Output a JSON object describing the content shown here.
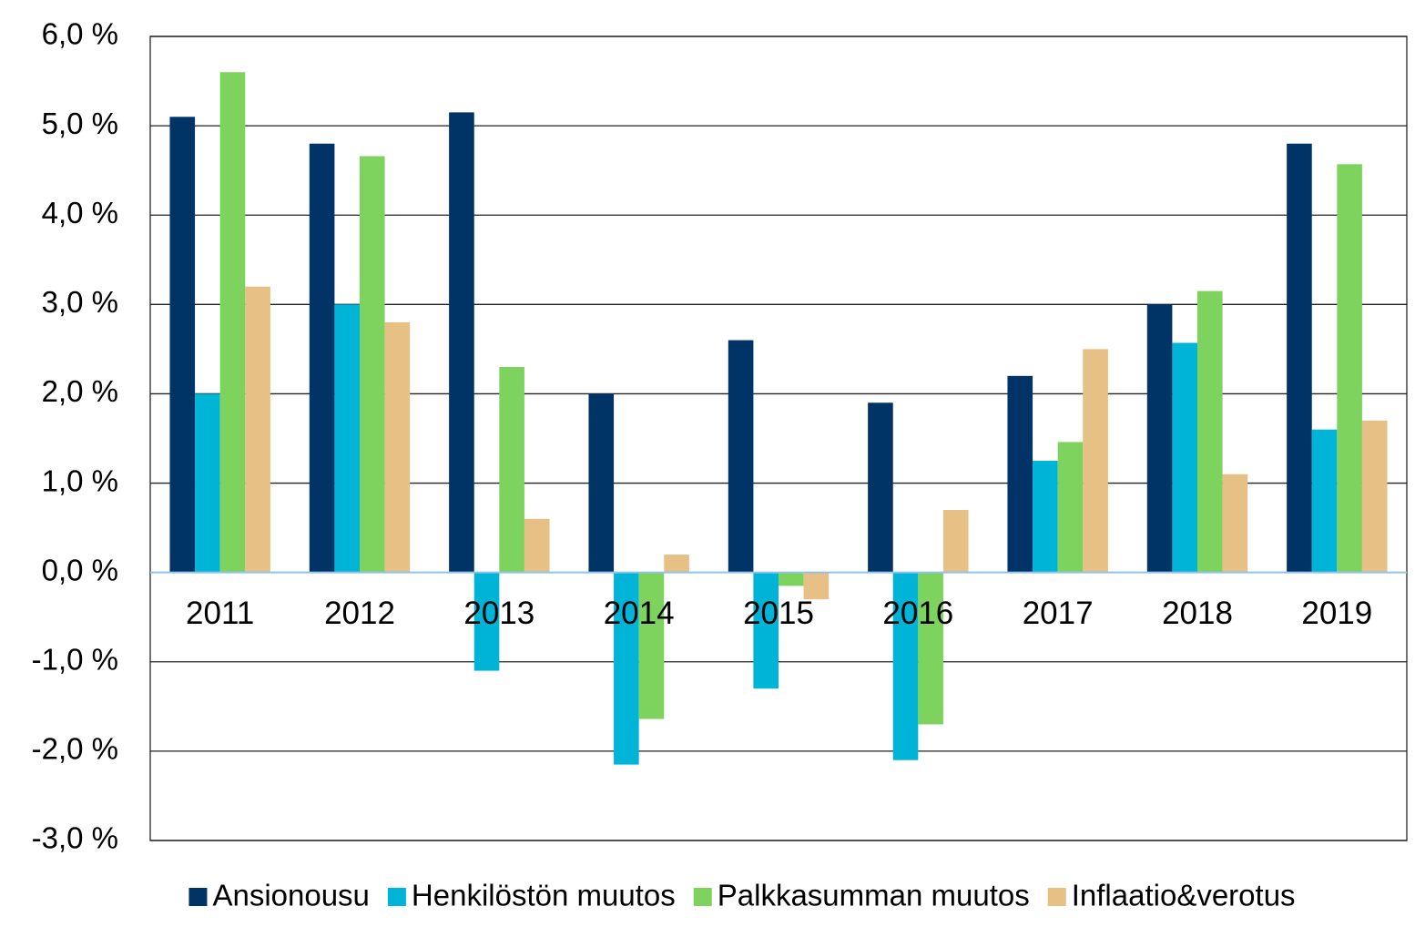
{
  "chart_data": {
    "type": "bar",
    "categories": [
      "2011",
      "2012",
      "2013",
      "2014",
      "2015",
      "2016",
      "2017",
      "2018",
      "2019"
    ],
    "series": [
      {
        "name": "Ansionousu",
        "color": "#003366",
        "values": [
          5.1,
          4.8,
          5.15,
          2.0,
          2.6,
          1.9,
          2.2,
          3.0,
          4.8
        ]
      },
      {
        "name": "Henkilöstön muutos",
        "color": "#00b4d8",
        "values": [
          2.0,
          3.0,
          -1.1,
          -2.15,
          -1.3,
          -2.1,
          1.25,
          2.57,
          1.6
        ]
      },
      {
        "name": "Palkkasumman muutos",
        "color": "#7ed35f",
        "values": [
          5.6,
          4.66,
          2.3,
          -1.64,
          -0.15,
          -1.7,
          1.46,
          3.15,
          4.57
        ]
      },
      {
        "name": "Inflaatio&verotus",
        "color": "#e6c084",
        "values": [
          3.2,
          2.8,
          0.6,
          0.2,
          -0.3,
          0.7,
          2.5,
          1.1,
          1.7
        ]
      }
    ],
    "ylim": [
      -3,
      6
    ],
    "yticks": [
      {
        "value": -3,
        "label": "-3,0 %"
      },
      {
        "value": -2,
        "label": "-2,0 %"
      },
      {
        "value": -1,
        "label": "-1,0 %"
      },
      {
        "value": 0,
        "label": "0,0 %"
      },
      {
        "value": 1,
        "label": "1,0 %"
      },
      {
        "value": 2,
        "label": "2,0 %"
      },
      {
        "value": 3,
        "label": "3,0 %"
      },
      {
        "value": 4,
        "label": "4,0 %"
      },
      {
        "value": 5,
        "label": "5,0 %"
      },
      {
        "value": 6,
        "label": "6,0 %"
      }
    ],
    "grid": true,
    "legend": "bottom"
  }
}
